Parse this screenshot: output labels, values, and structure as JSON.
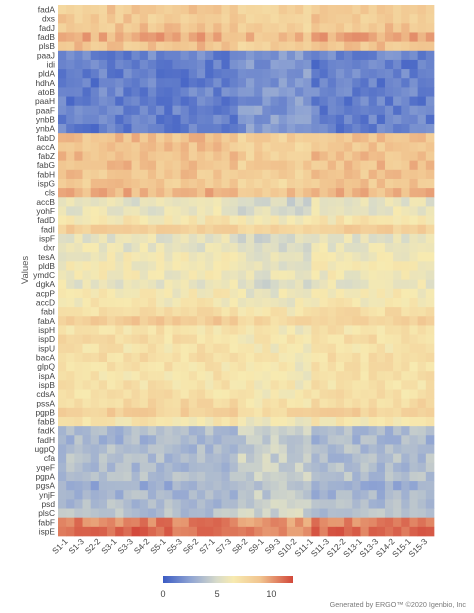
{
  "footer": "Generated by ERGO™ ©2020 Igenbio, Inc",
  "chart_data": {
    "type": "heatmap",
    "ylabel": "Values",
    "rows": [
      "fadA",
      "dxs",
      "fadJ",
      "fadB",
      "plsB",
      "paaJ",
      "idi",
      "pldA",
      "hdhA",
      "atoB",
      "paaH",
      "paaF",
      "ynbB",
      "ynbA",
      "fabD",
      "accA",
      "fabZ",
      "fabG",
      "fabH",
      "ispG",
      "cls",
      "accB",
      "yohF",
      "fadD",
      "fadI",
      "ispF",
      "dxr",
      "tesA",
      "pldB",
      "ymdC",
      "dgkA",
      "acpP",
      "accD",
      "fabI",
      "fabA",
      "ispH",
      "ispD",
      "ispU",
      "bacA",
      "glpQ",
      "ispA",
      "ispB",
      "cdsA",
      "pssA",
      "pgpB",
      "fabB",
      "fadK",
      "fadH",
      "ugpQ",
      "cfa",
      "yqeF",
      "pgpA",
      "pgsA",
      "ynjF",
      "psd",
      "plsC",
      "fabF",
      "ispE"
    ],
    "columns": [
      "S1-1",
      "S1-3",
      "S2-2",
      "S3-1",
      "S3-3",
      "S4-2",
      "S5-1",
      "S5-3",
      "S6-2",
      "S7-1",
      "S7-3",
      "S8-2",
      "S9-1",
      "S9-3",
      "S10-2",
      "S11-1",
      "S11-3",
      "S12-2",
      "S13-1",
      "S13-3",
      "S14-2",
      "S15-1",
      "S15-3"
    ],
    "row_base_values": [
      8.5,
      8.5,
      8.7,
      9.6,
      8.8,
      1.4,
      1.2,
      1.3,
      1.2,
      1.4,
      1.2,
      1.3,
      1.3,
      1.2,
      8.9,
      8.7,
      8.9,
      8.9,
      8.7,
      8.6,
      9.3,
      5.6,
      5.8,
      6.7,
      8.3,
      5.6,
      5.7,
      6.2,
      6.2,
      6.2,
      5.8,
      6.4,
      6.6,
      7.4,
      8.4,
      7.0,
      7.3,
      7.0,
      7.3,
      7.0,
      7.0,
      7.0,
      7.2,
      7.6,
      8.2,
      6.7,
      3.6,
      3.4,
      3.6,
      3.7,
      3.6,
      3.7,
      3.0,
      3.4,
      3.6,
      3.8,
      10.6,
      11.2
    ],
    "color_scale": {
      "min": 0,
      "max": 12,
      "stops": [
        {
          "value": 0,
          "color": "#3b5bc4"
        },
        {
          "value": 2.5,
          "color": "#8ea3d3"
        },
        {
          "value": 5,
          "color": "#d8dbc9"
        },
        {
          "value": 6.5,
          "color": "#f7eab0"
        },
        {
          "value": 9,
          "color": "#f1c48f"
        },
        {
          "value": 12,
          "color": "#d2483a"
        }
      ],
      "ticks": [
        0,
        5,
        10
      ]
    }
  }
}
